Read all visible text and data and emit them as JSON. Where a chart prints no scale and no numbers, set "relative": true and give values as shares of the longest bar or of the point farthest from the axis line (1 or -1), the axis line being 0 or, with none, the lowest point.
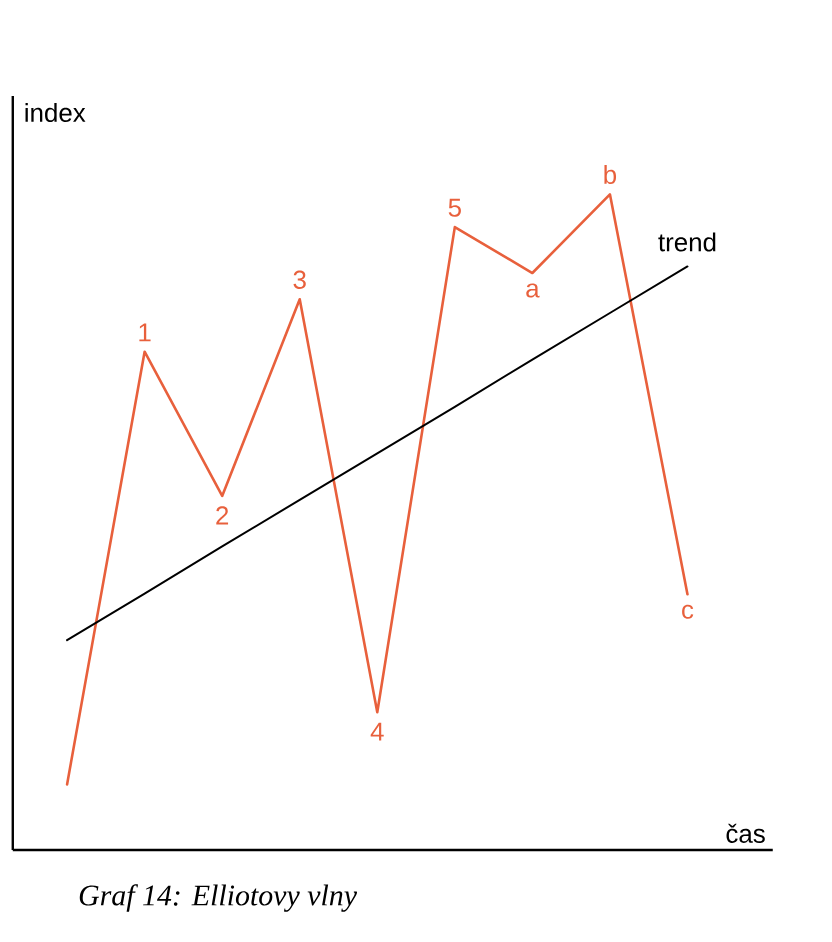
{
  "chart_data": {
    "type": "line",
    "title": "Graf 14: Elliotovy vlny",
    "xlabel": "čas",
    "ylabel": "index",
    "relative": true,
    "tick_labels": false,
    "marker": "none",
    "line_style": "solid",
    "categories": [
      null,
      null,
      null,
      null,
      null,
      null,
      null,
      null,
      null
    ],
    "series": [
      {
        "color": "#e8603c",
        "values": [
          0.1,
          0.76,
          0.54,
          0.84,
          0.21,
          0.95,
          0.88,
          1,
          0.39
        ]
      },
      {
        "name": "trend",
        "color": "#000000",
        "values": [
          0.32,
          0.391,
          0.463,
          0.534,
          0.605,
          0.676,
          0.748,
          0.819,
          0.89
        ]
      }
    ],
    "annotations": [
      {
        "text": "1",
        "y": 0.76
      },
      {
        "text": "2",
        "y": 0.54
      },
      {
        "text": "3",
        "y": 0.84
      },
      {
        "text": "4",
        "y": 0.21
      },
      {
        "text": "5",
        "y": 0.95
      },
      {
        "text": "a",
        "y": 0.88
      },
      {
        "text": "b",
        "y": 1
      },
      {
        "text": "c",
        "y": 0.39
      }
    ]
  }
}
